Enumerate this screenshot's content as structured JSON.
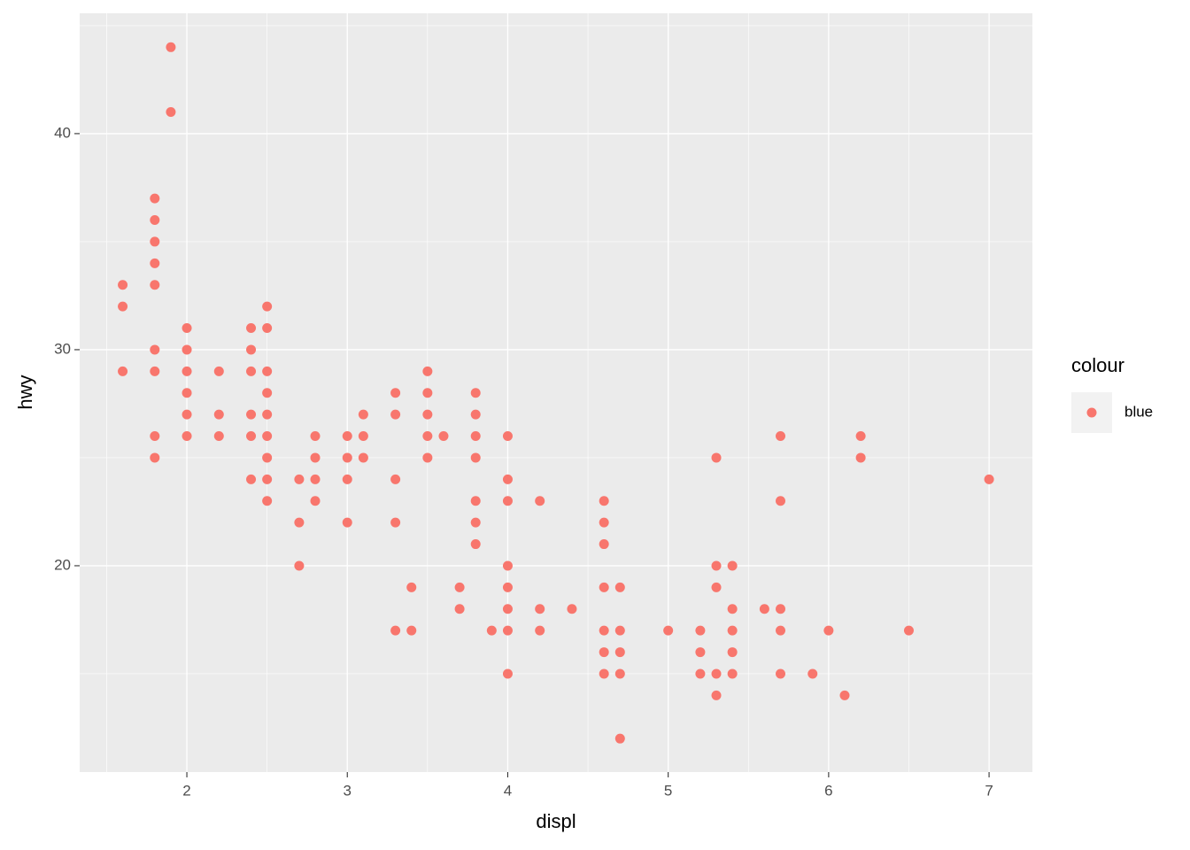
{
  "chart_data": {
    "type": "scatter",
    "x_label": "displ",
    "y_label": "hwy",
    "legend_title": "colour",
    "legend_position": "right",
    "xlim": [
      1.332,
      7.27
    ],
    "ylim": [
      10.45,
      45.57
    ],
    "xticks": [
      2,
      3,
      4,
      5,
      6,
      7
    ],
    "yticks": [
      20,
      30,
      40
    ],
    "grid": true,
    "series": [
      {
        "name": "blue",
        "color": "#F8766D",
        "x": [
          1.6,
          1.6,
          1.6,
          1.8,
          1.8,
          1.8,
          1.8,
          1.8,
          1.8,
          1.8,
          1.8,
          1.8,
          1.9,
          1.9,
          2,
          2,
          2,
          2,
          2,
          2,
          2.2,
          2.2,
          2.2,
          2.4,
          2.4,
          2.4,
          2.4,
          2.4,
          2.4,
          2.5,
          2.5,
          2.5,
          2.5,
          2.5,
          2.5,
          2.5,
          2.5,
          2.5,
          2.7,
          2.7,
          2.7,
          2.8,
          2.8,
          2.8,
          2.8,
          3,
          3,
          3,
          3,
          3.1,
          3.1,
          3.1,
          3.3,
          3.3,
          3.3,
          3.3,
          3.3,
          3.4,
          3.4,
          3.5,
          3.5,
          3.5,
          3.5,
          3.5,
          3.6,
          3.7,
          3.7,
          3.8,
          3.8,
          3.8,
          3.8,
          3.8,
          3.8,
          3.8,
          3.9,
          4,
          4,
          4,
          4,
          4,
          4,
          4,
          4,
          4.2,
          4.2,
          4.2,
          4.4,
          4.6,
          4.6,
          4.6,
          4.6,
          4.6,
          4.6,
          4.6,
          4.7,
          4.7,
          4.7,
          4.7,
          4.7,
          5,
          5.2,
          5.2,
          5.2,
          5.3,
          5.3,
          5.3,
          5.3,
          5.3,
          5.4,
          5.4,
          5.4,
          5.4,
          5.4,
          5.6,
          5.7,
          5.7,
          5.7,
          5.7,
          5.7,
          5.9,
          6,
          6.1,
          6.2,
          6.2,
          6.5,
          7
        ],
        "values": [
          33,
          32,
          29,
          37,
          36,
          35,
          34,
          33,
          30,
          29,
          26,
          25,
          44,
          41,
          31,
          30,
          29,
          28,
          27,
          26,
          29,
          27,
          26,
          31,
          30,
          29,
          27,
          26,
          24,
          32,
          31,
          29,
          28,
          27,
          26,
          25,
          24,
          23,
          24,
          22,
          20,
          26,
          25,
          24,
          23,
          26,
          25,
          24,
          22,
          27,
          26,
          25,
          28,
          27,
          24,
          22,
          17,
          19,
          17,
          29,
          28,
          27,
          26,
          25,
          26,
          19,
          18,
          28,
          27,
          26,
          25,
          23,
          22,
          21,
          17,
          26,
          24,
          23,
          20,
          19,
          18,
          17,
          15,
          23,
          18,
          17,
          18,
          23,
          22,
          21,
          19,
          17,
          16,
          15,
          19,
          17,
          16,
          15,
          12,
          17,
          17,
          16,
          15,
          25,
          20,
          19,
          15,
          14,
          20,
          18,
          17,
          16,
          15,
          18,
          26,
          23,
          18,
          17,
          15,
          15,
          17,
          14,
          26,
          25,
          17,
          24
        ]
      }
    ]
  }
}
